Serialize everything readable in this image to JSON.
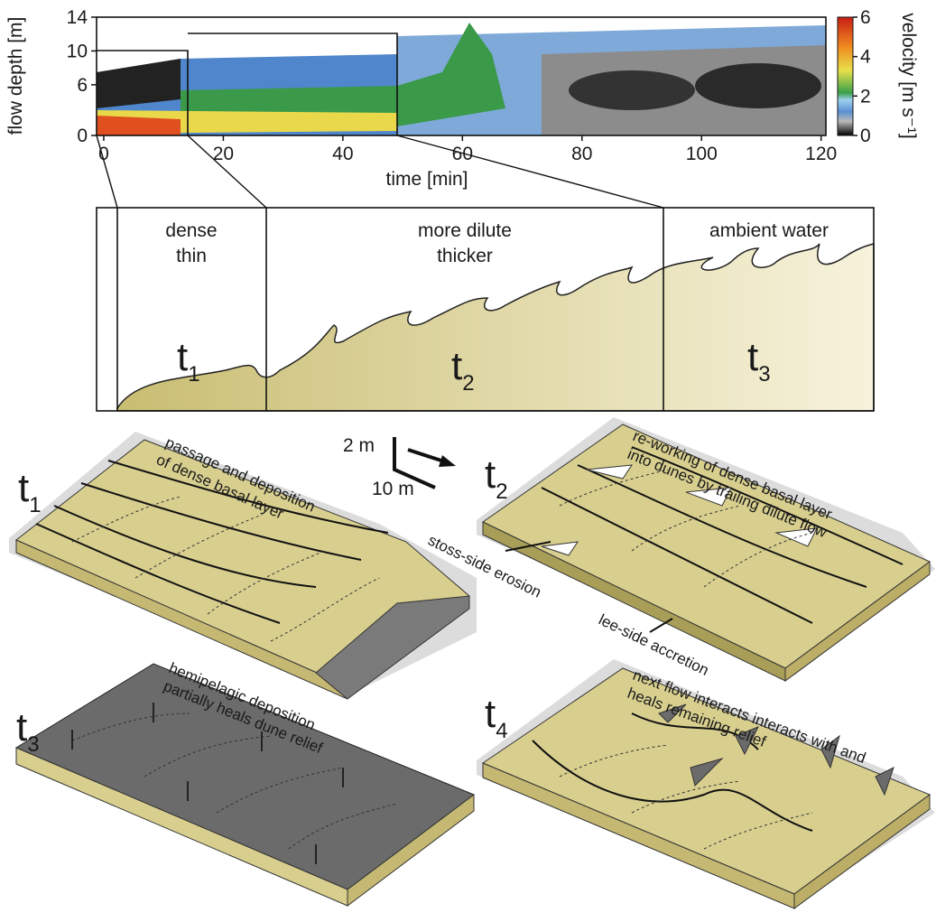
{
  "velocity_plot": {
    "y_label": "flow depth [m]",
    "x_label": "time [min]",
    "ylim": [
      0,
      14
    ],
    "yticks": [
      0,
      6,
      10,
      14
    ],
    "xlim": [
      -1.2,
      120.8
    ],
    "xticks": [
      0,
      20,
      40,
      60,
      80,
      100,
      120
    ],
    "colorbar": {
      "label": "velocity [m s⁻¹]",
      "lim": [
        0,
        6
      ],
      "ticks": [
        0,
        2,
        4,
        6
      ]
    }
  },
  "flow_stages": [
    {
      "lines": [
        "dense",
        "thin"
      ],
      "label": {
        "text": "t",
        "subscript": "1"
      }
    },
    {
      "lines": [
        "more dilute",
        "thicker"
      ],
      "label": {
        "text": "t",
        "subscript": "2"
      }
    },
    {
      "lines": [
        "ambient water"
      ],
      "label": {
        "text": "t",
        "subscript": "3"
      }
    }
  ],
  "scale_bar": {
    "vertical": "2 m",
    "horizontal": "10 m"
  },
  "block_diagrams": [
    {
      "label": {
        "text": "t",
        "subscript": "1"
      },
      "annotation": [
        "passage and deposition",
        "of dense basal layer"
      ]
    },
    {
      "label": {
        "text": "t",
        "subscript": "2"
      },
      "annotation": [
        "re-working of dense basal layer",
        "into dunes by trailing dilute flow"
      ],
      "callouts": [
        "stoss-side erosion",
        "lee-side accretion"
      ]
    },
    {
      "label": {
        "text": "t",
        "subscript": "3"
      },
      "annotation": [
        "hemipelagic deposition",
        "partially heals dune relief"
      ]
    },
    {
      "label": {
        "text": "t",
        "subscript": "4"
      },
      "annotation": [
        "next flow interacts interacts with and",
        "heals remaining relief"
      ]
    }
  ]
}
